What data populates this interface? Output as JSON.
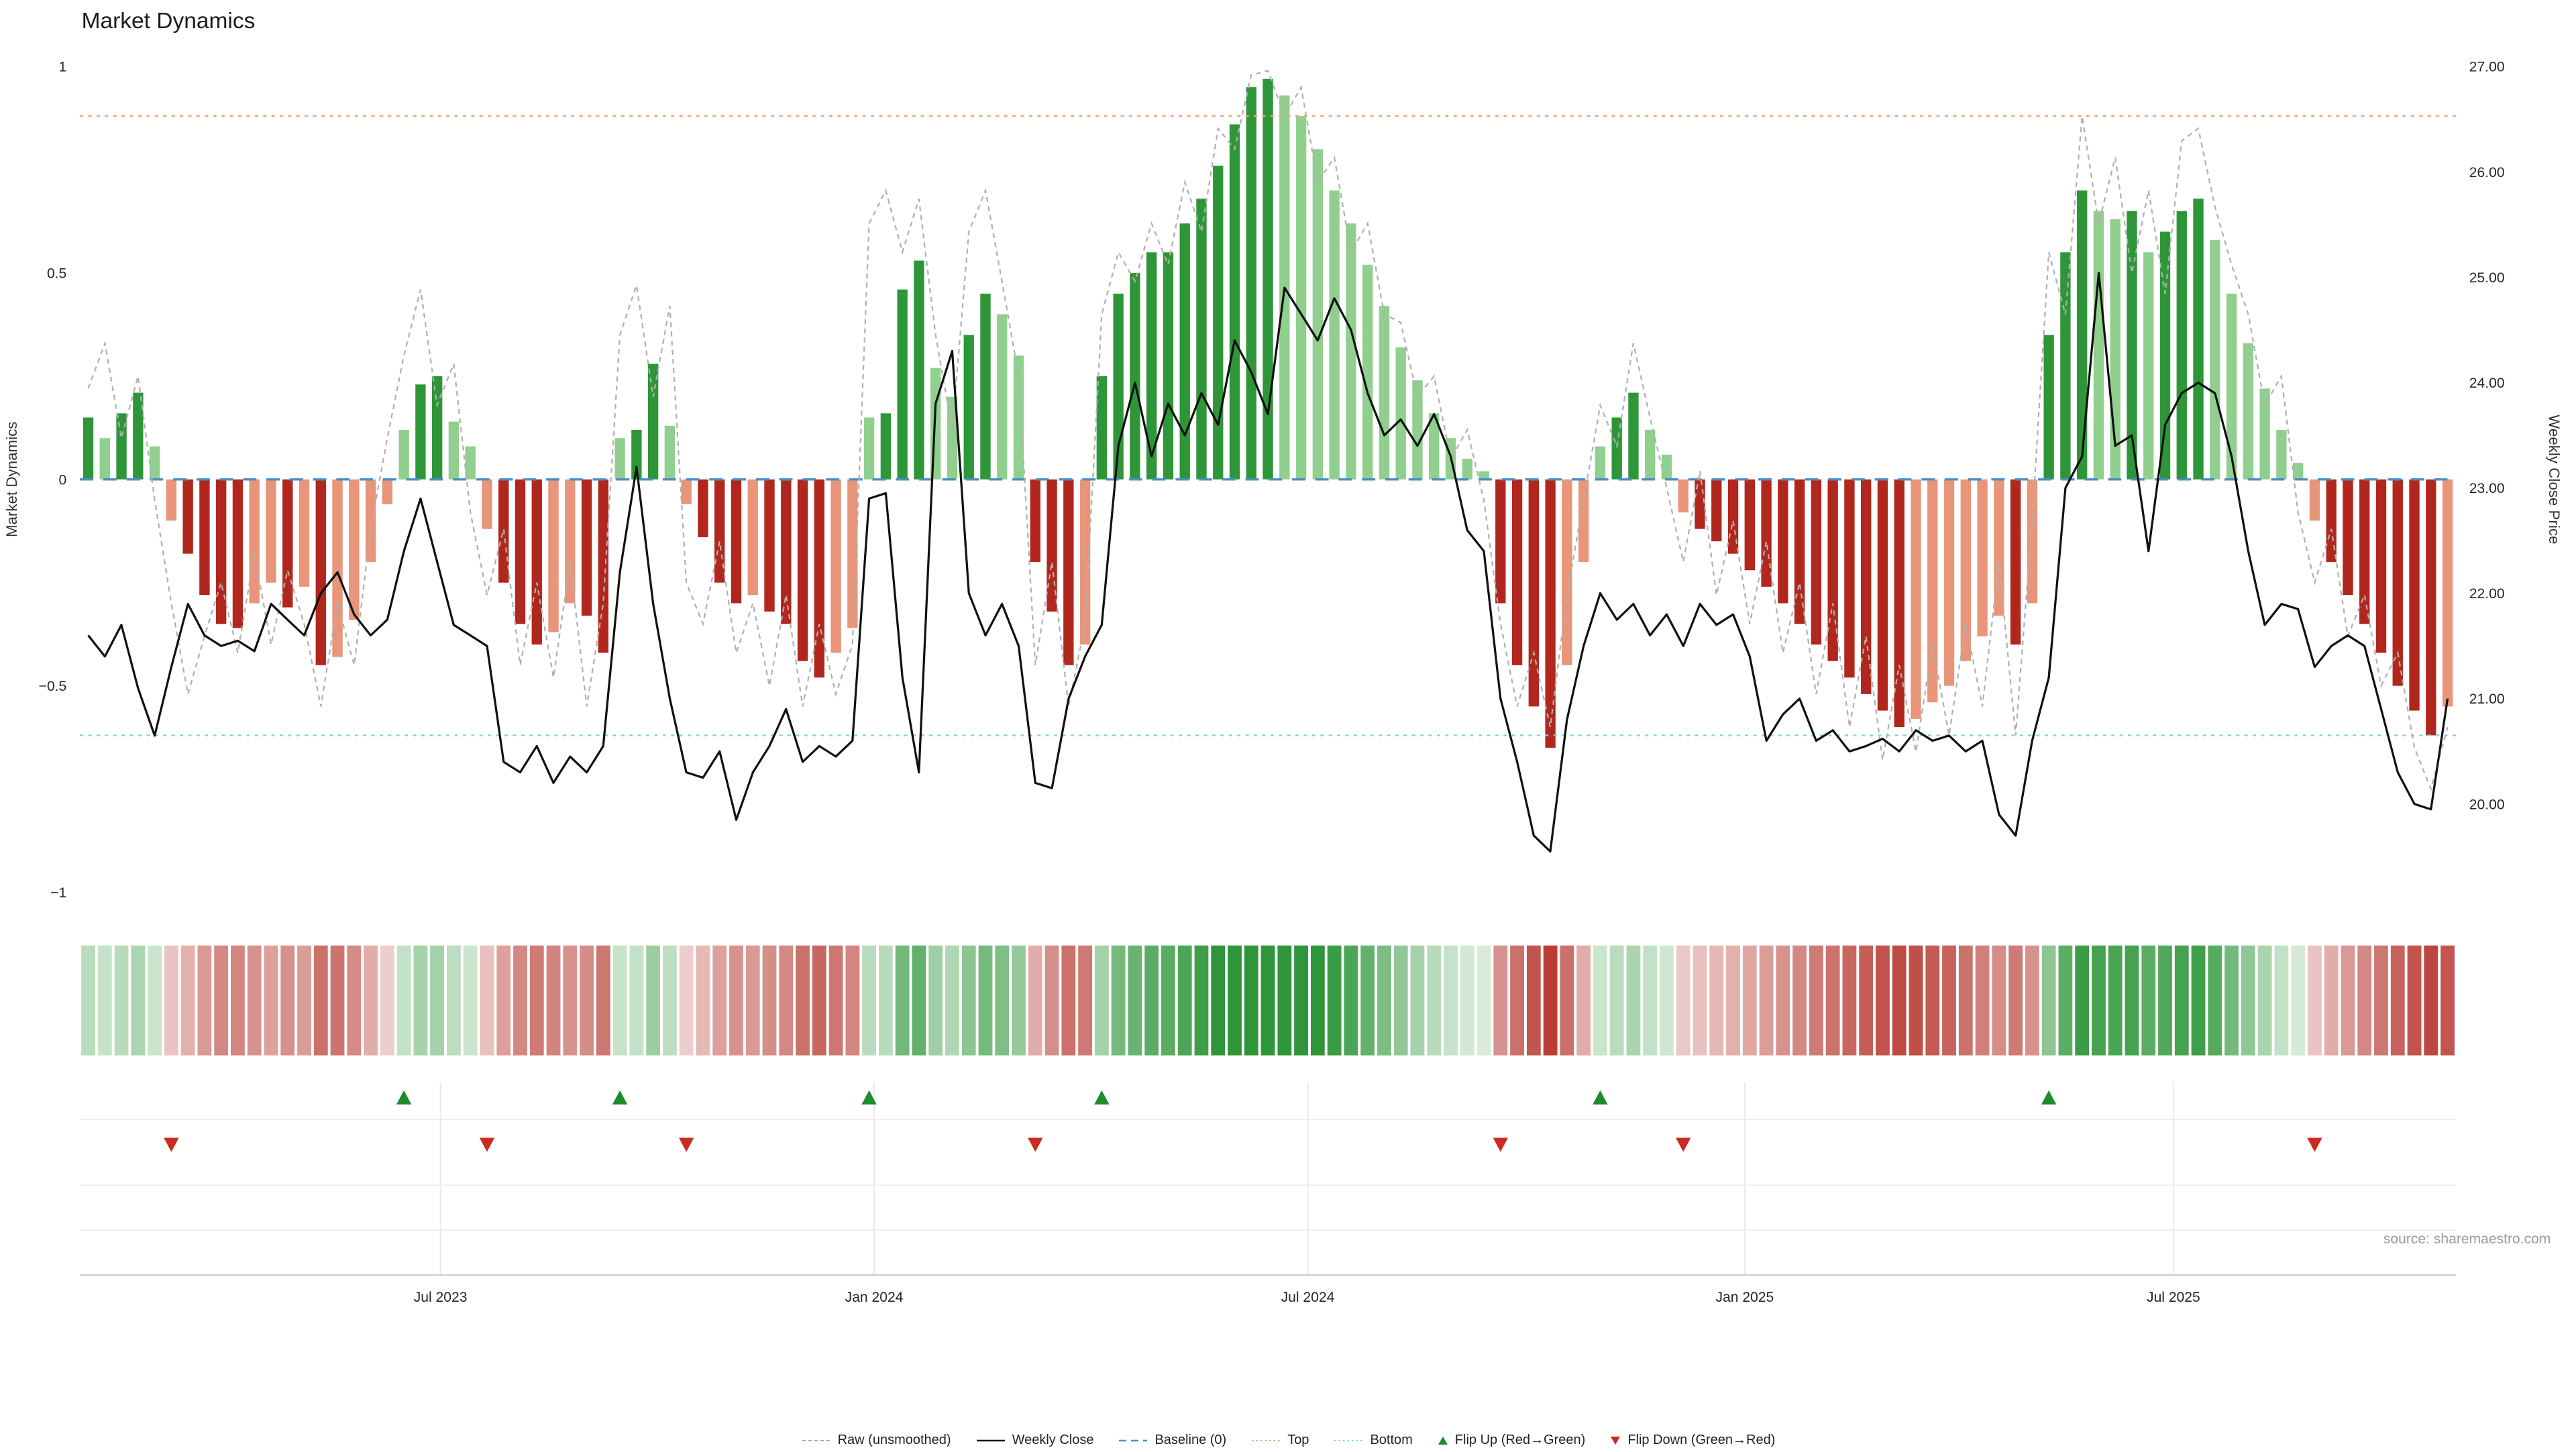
{
  "title": "Market Dynamics",
  "left_axis_label": "Market Dynamics",
  "right_axis_label": "Weekly Close Price",
  "source": "source: sharemaestro.com",
  "legend": {
    "items": [
      {
        "label": "Raw (unsmoothed)",
        "marker": "dashed-line",
        "color": "#aaaaaa"
      },
      {
        "label": "Weekly Close",
        "marker": "solid-line",
        "color": "#111111"
      },
      {
        "label": "Baseline (0)",
        "marker": "long-dash-line",
        "color": "#4a90c8"
      },
      {
        "label": "Top",
        "marker": "dotted-line",
        "color": "#efa273"
      },
      {
        "label": "Bottom",
        "marker": "dotted-line",
        "color": "#83d2da"
      },
      {
        "label": "Flip Up (Red→Green)",
        "marker": "triangle-up",
        "color": "#1e8b2d"
      },
      {
        "label": "Flip Down (Green→Red)",
        "marker": "triangle-down",
        "color": "#cc2a1e"
      }
    ]
  },
  "chart_data": {
    "type": "combo_bar_line",
    "title": "Market Dynamics",
    "x_unit": "week",
    "n_weeks": 143,
    "x_ticks": [
      {
        "label": "Jul 2023",
        "week": 21.2
      },
      {
        "label": "Jan 2024",
        "week": 47.3
      },
      {
        "label": "Jul 2024",
        "week": 73.4
      },
      {
        "label": "Jan 2025",
        "week": 99.7
      },
      {
        "label": "Jul 2025",
        "week": 125.5
      }
    ],
    "left_axis": {
      "label": "Market Dynamics",
      "range": [
        -1,
        1
      ],
      "ticks": [
        {
          "value": 1,
          "label": "1"
        },
        {
          "value": 0.5,
          "label": "0.5"
        },
        {
          "value": 0,
          "label": "0"
        },
        {
          "value": -0.5,
          "label": "−0.5"
        },
        {
          "value": -1,
          "label": "−1"
        }
      ]
    },
    "right_axis": {
      "label": "Weekly Close Price",
      "range": [
        20,
        27
      ],
      "ticks": [
        {
          "value": 27,
          "label": "27.00"
        },
        {
          "value": 26,
          "label": "26.00"
        },
        {
          "value": 25,
          "label": "25.00"
        },
        {
          "value": 24,
          "label": "24.00"
        },
        {
          "value": 23,
          "label": "23.00"
        },
        {
          "value": 22,
          "label": "22.00"
        },
        {
          "value": 21,
          "label": "21.00"
        },
        {
          "value": 20,
          "label": "20.00"
        }
      ]
    },
    "reference_lines": {
      "baseline": 0,
      "top": 0.88,
      "bottom": -0.62
    },
    "flip_up_weeks": [
      19,
      32,
      47,
      61,
      91,
      118
    ],
    "flip_down_weeks": [
      5,
      24,
      36,
      57,
      85,
      96,
      134
    ],
    "colors": {
      "dark_green": "#2e9639",
      "light_green": "#90cf8e",
      "dark_red": "#b1261d",
      "light_red": "#e8957a",
      "raw_line": "#b0b0b0",
      "close_line": "#111111",
      "baseline": "#4a90c8",
      "top_line": "#efa273",
      "bottom_line": "#83d2da",
      "flip_up": "#1e8b2d",
      "flip_down": "#cc2a1e"
    },
    "series": {
      "dynamics": [
        0.15,
        0.1,
        0.16,
        0.21,
        0.08,
        -0.1,
        -0.18,
        -0.28,
        -0.35,
        -0.36,
        -0.3,
        -0.25,
        -0.31,
        -0.26,
        -0.45,
        -0.43,
        -0.34,
        -0.2,
        -0.06,
        0.12,
        0.23,
        0.25,
        0.14,
        0.08,
        -0.12,
        -0.25,
        -0.35,
        -0.4,
        -0.37,
        -0.3,
        -0.33,
        -0.42,
        0.1,
        0.12,
        0.28,
        0.13,
        -0.06,
        -0.14,
        -0.25,
        -0.3,
        -0.28,
        -0.32,
        -0.35,
        -0.44,
        -0.48,
        -0.42,
        -0.36,
        0.15,
        0.16,
        0.46,
        0.53,
        0.27,
        0.2,
        0.35,
        0.45,
        0.4,
        0.3,
        -0.2,
        -0.32,
        -0.45,
        -0.4,
        0.25,
        0.45,
        0.5,
        0.55,
        0.55,
        0.62,
        0.68,
        0.76,
        0.86,
        0.95,
        0.97,
        0.93,
        0.88,
        0.8,
        0.7,
        0.62,
        0.52,
        0.42,
        0.32,
        0.24,
        0.16,
        0.1,
        0.05,
        0.02,
        -0.3,
        -0.45,
        -0.55,
        -0.65,
        -0.45,
        -0.2,
        0.08,
        0.15,
        0.21,
        0.12,
        0.06,
        -0.08,
        -0.12,
        -0.15,
        -0.18,
        -0.22,
        -0.26,
        -0.3,
        -0.35,
        -0.4,
        -0.44,
        -0.48,
        -0.52,
        -0.56,
        -0.6,
        -0.58,
        -0.54,
        -0.5,
        -0.44,
        -0.38,
        -0.33,
        -0.4,
        -0.3,
        0.35,
        0.55,
        0.7,
        0.65,
        0.63,
        0.65,
        0.55,
        0.6,
        0.65,
        0.68,
        0.58,
        0.45,
        0.33,
        0.22,
        0.12,
        0.04,
        -0.1,
        -0.2,
        -0.28,
        -0.35,
        -0.42,
        -0.5,
        -0.56,
        -0.62,
        -0.55
      ],
      "raw": [
        0.22,
        0.33,
        0.1,
        0.25,
        -0.05,
        -0.3,
        -0.52,
        -0.38,
        -0.25,
        -0.42,
        -0.18,
        -0.4,
        -0.22,
        -0.35,
        -0.55,
        -0.3,
        -0.45,
        -0.12,
        0.1,
        0.3,
        0.46,
        0.18,
        0.28,
        -0.08,
        -0.28,
        -0.12,
        -0.45,
        -0.25,
        -0.48,
        -0.2,
        -0.55,
        -0.3,
        0.35,
        0.47,
        0.2,
        0.42,
        -0.25,
        -0.35,
        -0.15,
        -0.42,
        -0.3,
        -0.5,
        -0.28,
        -0.55,
        -0.35,
        -0.52,
        -0.4,
        0.62,
        0.7,
        0.55,
        0.68,
        0.35,
        0.12,
        0.6,
        0.7,
        0.48,
        0.25,
        -0.45,
        -0.2,
        -0.55,
        -0.35,
        0.4,
        0.55,
        0.48,
        0.62,
        0.52,
        0.72,
        0.6,
        0.85,
        0.8,
        0.98,
        0.99,
        0.88,
        0.95,
        0.72,
        0.78,
        0.55,
        0.62,
        0.4,
        0.38,
        0.2,
        0.25,
        0.05,
        0.12,
        -0.05,
        -0.35,
        -0.55,
        -0.42,
        -0.6,
        -0.28,
        -0.05,
        0.18,
        0.08,
        0.33,
        0.15,
        -0.02,
        -0.2,
        0.02,
        -0.28,
        -0.1,
        -0.35,
        -0.15,
        -0.42,
        -0.25,
        -0.52,
        -0.3,
        -0.6,
        -0.38,
        -0.68,
        -0.45,
        -0.66,
        -0.4,
        -0.62,
        -0.35,
        -0.55,
        -0.2,
        -0.62,
        -0.1,
        0.55,
        0.4,
        0.88,
        0.62,
        0.78,
        0.5,
        0.7,
        0.45,
        0.82,
        0.85,
        0.66,
        0.52,
        0.4,
        0.18,
        0.25,
        -0.08,
        -0.25,
        -0.12,
        -0.38,
        -0.28,
        -0.5,
        -0.42,
        -0.65,
        -0.75,
        -0.6
      ],
      "weekly_close": [
        21.6,
        21.4,
        21.7,
        21.1,
        20.65,
        21.3,
        21.9,
        21.6,
        21.5,
        21.55,
        21.45,
        21.9,
        21.75,
        21.6,
        22.0,
        22.2,
        21.8,
        21.6,
        21.75,
        22.4,
        22.9,
        22.3,
        21.7,
        21.6,
        21.5,
        20.4,
        20.3,
        20.55,
        20.2,
        20.45,
        20.3,
        20.55,
        22.2,
        23.2,
        21.9,
        21.0,
        20.3,
        20.25,
        20.5,
        19.85,
        20.3,
        20.55,
        20.9,
        20.4,
        20.55,
        20.45,
        20.6,
        22.9,
        22.95,
        21.2,
        20.3,
        23.8,
        24.3,
        22.0,
        21.6,
        21.9,
        21.5,
        20.2,
        20.15,
        21.0,
        21.4,
        21.7,
        23.4,
        24.0,
        23.3,
        23.8,
        23.5,
        23.9,
        23.6,
        24.4,
        24.1,
        23.7,
        24.9,
        24.65,
        24.4,
        24.8,
        24.5,
        23.9,
        23.5,
        23.65,
        23.4,
        23.7,
        23.3,
        22.6,
        22.4,
        21.0,
        20.4,
        19.7,
        19.55,
        20.8,
        21.5,
        22.0,
        21.75,
        21.9,
        21.6,
        21.8,
        21.5,
        21.9,
        21.7,
        21.8,
        21.4,
        20.6,
        20.85,
        21.0,
        20.6,
        20.7,
        20.5,
        20.55,
        20.62,
        20.5,
        20.7,
        20.6,
        20.65,
        20.5,
        20.6,
        19.9,
        19.7,
        20.6,
        21.2,
        23.0,
        23.3,
        25.04,
        23.4,
        23.5,
        22.4,
        23.6,
        23.9,
        24.0,
        23.9,
        23.3,
        22.4,
        21.7,
        21.9,
        21.85,
        21.3,
        21.5,
        21.6,
        21.5,
        20.9,
        20.3,
        20.0,
        19.95,
        21.0
      ]
    }
  }
}
